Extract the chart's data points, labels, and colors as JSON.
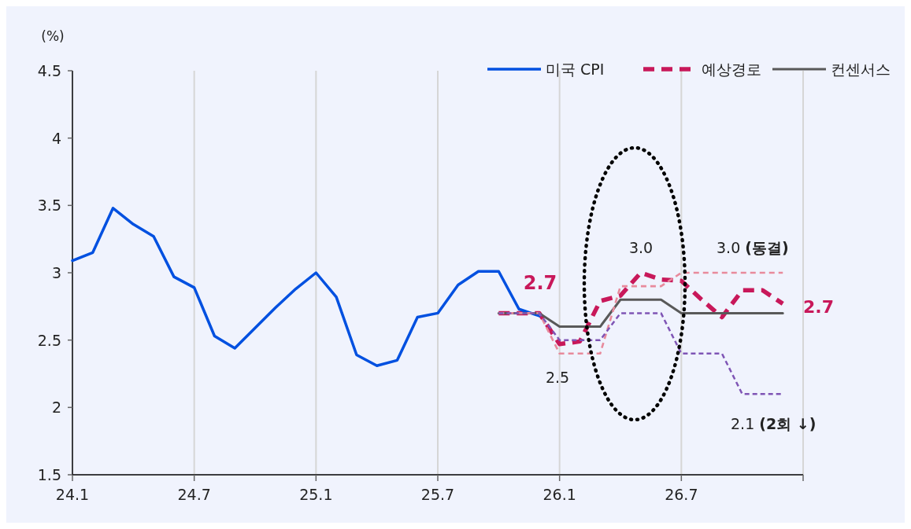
{
  "chart_data": {
    "type": "line",
    "ylabel": "(%)",
    "categories": [
      "24.1",
      null,
      null,
      null,
      null,
      null,
      "24.7",
      null,
      null,
      null,
      null,
      null,
      "25.1",
      null,
      null,
      null,
      null,
      null,
      "25.7",
      null,
      null,
      null,
      null,
      null,
      "26.1",
      null,
      null,
      null,
      null,
      null,
      "26.7",
      null,
      null,
      null,
      null,
      null
    ],
    "ylim": [
      1.5,
      4.5
    ],
    "yticks": [
      1.5,
      2,
      2.5,
      3,
      3.5,
      4,
      4.5
    ],
    "grid": "x",
    "legend": "top right",
    "series": [
      {
        "name": "미국 CPI",
        "color": "#0050e0",
        "line_style": "solid",
        "values": [
          3.09,
          3.15,
          3.48,
          3.36,
          3.27,
          2.97,
          2.89,
          2.53,
          2.44,
          2.59,
          2.74,
          2.88,
          3.0,
          2.82,
          2.39,
          2.31,
          2.35,
          2.67,
          2.7,
          2.91,
          3.01,
          3.01,
          2.73,
          2.68,
          null,
          null,
          null,
          null,
          null,
          null,
          null,
          null,
          null,
          null,
          null,
          null
        ]
      },
      {
        "name": "예상경로",
        "color": "#c8185a",
        "line_style": "dashed",
        "values": [
          null,
          null,
          null,
          null,
          null,
          null,
          null,
          null,
          null,
          null,
          null,
          null,
          null,
          null,
          null,
          null,
          null,
          null,
          null,
          null,
          null,
          2.7,
          2.7,
          2.7,
          2.47,
          2.49,
          2.79,
          2.83,
          3.0,
          2.95,
          2.94,
          2.8,
          2.67,
          2.87,
          2.87,
          2.77
        ]
      },
      {
        "name": "컨센서스",
        "color": "#595959",
        "line_style": "solid",
        "values": [
          null,
          null,
          null,
          null,
          null,
          null,
          null,
          null,
          null,
          null,
          null,
          null,
          null,
          null,
          null,
          null,
          null,
          null,
          null,
          null,
          null,
          2.7,
          2.7,
          2.7,
          2.6,
          2.6,
          2.6,
          2.8,
          2.8,
          2.8,
          2.7,
          2.7,
          2.7,
          2.7,
          2.7,
          2.7
        ]
      },
      {
        "color": "#7f55b5",
        "line_style": "dashed",
        "values": [
          null,
          null,
          null,
          null,
          null,
          null,
          null,
          null,
          null,
          null,
          null,
          null,
          null,
          null,
          null,
          null,
          null,
          null,
          null,
          null,
          null,
          2.7,
          2.7,
          2.7,
          2.5,
          2.5,
          2.5,
          2.7,
          2.7,
          2.7,
          2.4,
          2.4,
          2.4,
          2.1,
          2.1,
          2.1
        ]
      },
      {
        "color": "#e88a9c",
        "line_style": "dashed",
        "values": [
          null,
          null,
          null,
          null,
          null,
          null,
          null,
          null,
          null,
          null,
          null,
          null,
          null,
          null,
          null,
          null,
          null,
          null,
          null,
          null,
          null,
          2.7,
          2.7,
          2.7,
          2.4,
          2.4,
          2.4,
          2.9,
          2.9,
          2.9,
          3.0,
          3.0,
          3.0,
          3.0,
          3.0,
          3.0
        ]
      }
    ],
    "annotations": [
      "2.7",
      "2.5",
      "3.0",
      "3.0 (동결)",
      "2.7",
      "2.1 (2회 ↓)"
    ]
  }
}
